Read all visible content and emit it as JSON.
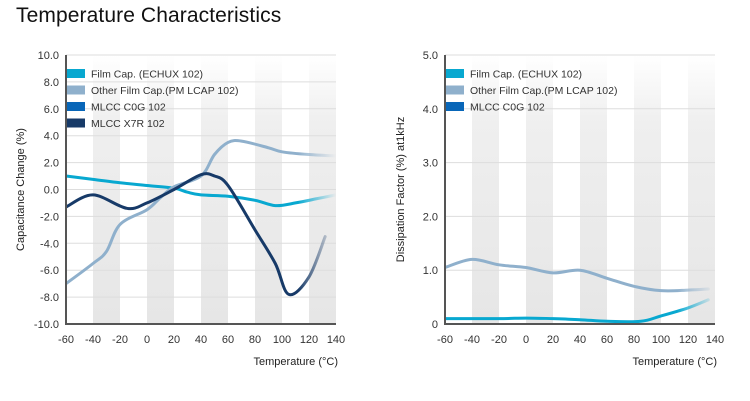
{
  "page": {
    "title": "Temperature Characteristics"
  },
  "colors": {
    "film_cap": "#08A8D0",
    "other_film": "#8FB0CC",
    "mlcc_c0g": "#0866B8",
    "mlcc_x7r": "#173A68",
    "band": "#e6e6e6",
    "grid": "#dddddd",
    "axis": "#555555"
  },
  "chart_data": [
    {
      "type": "line",
      "title": "",
      "xlabel": "Temperature (°C)",
      "ylabel": "Capacitance Change (%)",
      "xlim": [
        -60,
        140
      ],
      "ylim": [
        -10,
        10
      ],
      "xticks": [
        "-60",
        "-40",
        "-20",
        "0",
        "20",
        "40",
        "60",
        "80",
        "100",
        "120",
        "140"
      ],
      "yticks": [
        "10.0",
        "8.0",
        "6.0",
        "4.0",
        "2.0",
        "0.0",
        "-2.0",
        "-4.0",
        "-6.0",
        "-8.0",
        "-10.0"
      ],
      "grid": true,
      "legend_position": "top-left",
      "series": [
        {
          "name": "Film Cap. (ECHUX 102)",
          "color_key": "film_cap",
          "x": [
            -60,
            -40,
            -20,
            0,
            20,
            30,
            40,
            60,
            80,
            95,
            110,
            125,
            140
          ],
          "y": [
            1.0,
            0.75,
            0.5,
            0.3,
            0.1,
            -0.2,
            -0.4,
            -0.5,
            -0.8,
            -1.2,
            -1.0,
            -0.7,
            -0.4
          ]
        },
        {
          "name": "Other Film Cap.(PM LCAP 102)",
          "color_key": "other_film",
          "x": [
            -60,
            -40,
            -30,
            -20,
            0,
            10,
            20,
            40,
            50,
            60,
            70,
            90,
            100,
            120,
            140
          ],
          "y": [
            -7.0,
            -5.5,
            -4.6,
            -2.6,
            -1.5,
            -0.6,
            0.2,
            1.0,
            2.6,
            3.5,
            3.6,
            3.1,
            2.8,
            2.6,
            2.5
          ]
        },
        {
          "name": "MLCC C0G 102",
          "color_key": "mlcc_c0g",
          "x": [
            -60,
            140
          ],
          "y": [
            0.0,
            0.0
          ]
        },
        {
          "name": "MLCC X7R 102",
          "color_key": "mlcc_x7r",
          "x": [
            -60,
            -40,
            -15,
            0,
            20,
            40,
            50,
            60,
            80,
            95,
            105,
            120,
            132
          ],
          "y": [
            -1.3,
            -0.4,
            -1.4,
            -1.0,
            0.0,
            1.1,
            1.0,
            0.3,
            -3.0,
            -5.5,
            -7.8,
            -6.5,
            -3.5
          ]
        }
      ]
    },
    {
      "type": "line",
      "title": "",
      "xlabel": "Temperature (°C)",
      "ylabel": "Dissipation Factor (%) at1kHz",
      "xlim": [
        -60,
        140
      ],
      "ylim": [
        0,
        5
      ],
      "xticks": [
        "-60",
        "-40",
        "-20",
        "0",
        "20",
        "40",
        "60",
        "80",
        "100",
        "120",
        "140"
      ],
      "yticks": [
        "5.0",
        "4.0",
        "3.0",
        "2.0",
        "1.0",
        "0"
      ],
      "grid": true,
      "legend_position": "top-left",
      "series": [
        {
          "name": "Film Cap. (ECHUX 102)",
          "color_key": "film_cap",
          "x": [
            -60,
            -20,
            0,
            20,
            40,
            60,
            85,
            100,
            120,
            135
          ],
          "y": [
            0.1,
            0.1,
            0.11,
            0.1,
            0.08,
            0.05,
            0.05,
            0.15,
            0.3,
            0.45
          ]
        },
        {
          "name": "Other Film Cap.(PM LCAP 102)",
          "color_key": "other_film",
          "x": [
            -60,
            -40,
            -20,
            0,
            20,
            40,
            60,
            80,
            100,
            120,
            135
          ],
          "y": [
            1.05,
            1.2,
            1.1,
            1.05,
            0.95,
            1.0,
            0.85,
            0.7,
            0.62,
            0.63,
            0.65
          ]
        },
        {
          "name": "MLCC C0G 102",
          "color_key": "mlcc_c0g",
          "x": [
            -60,
            135
          ],
          "y": [
            0.03,
            0.03
          ]
        }
      ]
    }
  ]
}
